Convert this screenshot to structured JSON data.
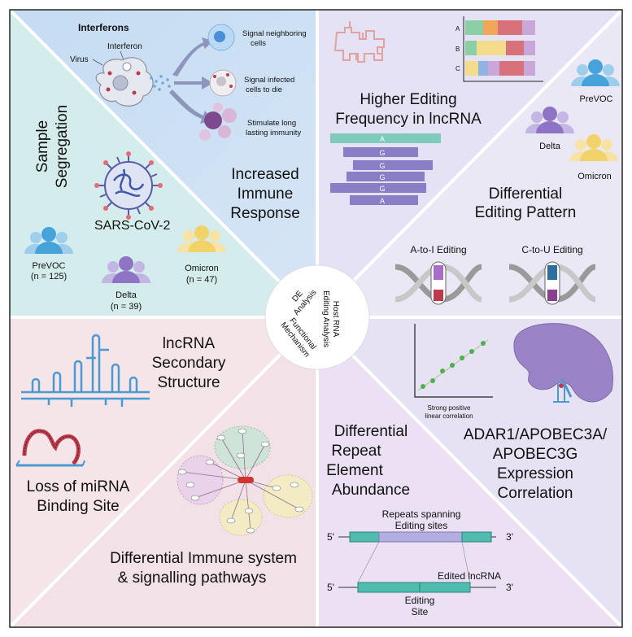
{
  "center": {
    "left_label": [
      "DE",
      "Analysis"
    ],
    "bottom_label": [
      "Functional",
      "Mechanism"
    ],
    "right_label": [
      "Host RNA",
      "Editing Analysis"
    ]
  },
  "sample_segregation": {
    "title": [
      "Sample",
      "Segregation"
    ],
    "virus_label": "SARS-CoV-2",
    "groups": [
      {
        "name": "PreVOC",
        "n": "(n = 125)",
        "color": "#45a3d9"
      },
      {
        "name": "Delta",
        "n": "(n = 39)",
        "color": "#8f74c5"
      },
      {
        "name": "Omicron",
        "n": "(n = 47)",
        "color": "#f2d36b"
      }
    ]
  },
  "immune_response": {
    "header": "Interferons",
    "virus_label": "Virus",
    "interferon_label": "Interferon",
    "effects": [
      [
        "Signal neighboring",
        "cells"
      ],
      [
        "Signal infected",
        "cells to die"
      ],
      [
        "Stimulate long",
        "lasting immunity"
      ]
    ],
    "title": [
      "Increased",
      "Immune",
      "Response"
    ]
  },
  "lncrna_editing": {
    "title": [
      "Higher Editing",
      "Frequency in lncRNA"
    ],
    "bar_rows": [
      "A",
      "B",
      "C"
    ],
    "alignment_letters": [
      "A",
      "G",
      "G",
      "G",
      "G",
      "A"
    ]
  },
  "differential_pattern": {
    "groups": [
      "PreVOC",
      "Delta",
      "Omicron"
    ],
    "title": [
      "Differential",
      "Editing Pattern"
    ],
    "editing_types": [
      "A-to-I Editing",
      "C-to-U Editing"
    ]
  },
  "lncrna_structure": {
    "title": [
      "lncRNA",
      "Secondary",
      "Structure"
    ],
    "mirna_title": [
      "Loss of miRNA",
      "Binding Site"
    ]
  },
  "immune_pathways": {
    "title": [
      "Differential Immune system",
      "& signalling pathways"
    ]
  },
  "repeat_abundance": {
    "title": [
      "Differential",
      "Repeat",
      "Element",
      "Abundance"
    ],
    "repeats_label": [
      "Repeats spanning",
      "Editing sites"
    ],
    "edited_label": "Edited lncRNA",
    "site_label": [
      "Editing",
      "Site"
    ],
    "five_prime": "5'",
    "three_prime": "3'"
  },
  "correlation": {
    "caption": [
      "Strong positive",
      "linear correlation"
    ],
    "title": [
      "ADAR1/APOBEC3A/",
      "APOBEC3G",
      "Expression",
      "Correlation"
    ]
  }
}
